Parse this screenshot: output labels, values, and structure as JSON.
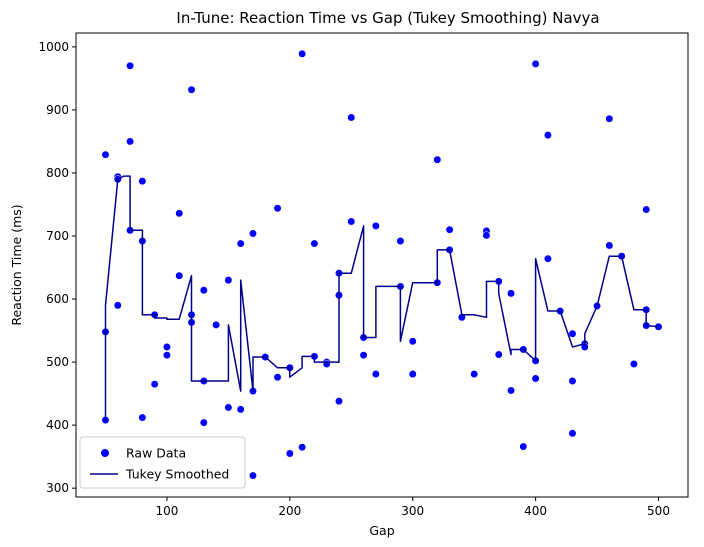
{
  "chart_data": {
    "type": "scatter",
    "title": "In-Tune: Reaction Time vs Gap (Tukey Smoothing) Navya",
    "xlabel": "Gap",
    "ylabel": "Reaction Time (ms)",
    "xlim": [
      26,
      524
    ],
    "ylim": [
      286,
      1022
    ],
    "xticks": [
      100,
      200,
      300,
      400,
      500
    ],
    "yticks": [
      300,
      400,
      500,
      600,
      700,
      800,
      900,
      1000
    ],
    "grid": false,
    "legend": {
      "position": "lower-left",
      "entries": [
        "Raw Data",
        "Tukey Smoothed"
      ]
    },
    "series": [
      {
        "name": "Raw Data",
        "kind": "scatter",
        "color": "#0000ff",
        "points": [
          [
            50,
            829
          ],
          [
            50,
            548
          ],
          [
            50,
            408
          ],
          [
            60,
            794
          ],
          [
            60,
            790
          ],
          [
            60,
            590
          ],
          [
            70,
            970
          ],
          [
            70,
            850
          ],
          [
            70,
            709
          ],
          [
            80,
            787
          ],
          [
            80,
            692
          ],
          [
            80,
            412
          ],
          [
            90,
            575
          ],
          [
            90,
            465
          ],
          [
            100,
            524
          ],
          [
            100,
            511
          ],
          [
            110,
            736
          ],
          [
            110,
            637
          ],
          [
            120,
            932
          ],
          [
            120,
            575
          ],
          [
            120,
            563
          ],
          [
            130,
            614
          ],
          [
            130,
            470
          ],
          [
            130,
            404
          ],
          [
            140,
            559
          ],
          [
            150,
            630
          ],
          [
            150,
            428
          ],
          [
            160,
            688
          ],
          [
            160,
            425
          ],
          [
            170,
            704
          ],
          [
            170,
            454
          ],
          [
            170,
            320
          ],
          [
            180,
            508
          ],
          [
            190,
            744
          ],
          [
            190,
            476
          ],
          [
            200,
            491
          ],
          [
            200,
            355
          ],
          [
            210,
            989
          ],
          [
            210,
            365
          ],
          [
            220,
            688
          ],
          [
            220,
            509
          ],
          [
            230,
            500
          ],
          [
            230,
            497
          ],
          [
            240,
            641
          ],
          [
            240,
            606
          ],
          [
            240,
            438
          ],
          [
            250,
            888
          ],
          [
            250,
            723
          ],
          [
            260,
            539
          ],
          [
            260,
            511
          ],
          [
            270,
            716
          ],
          [
            270,
            481
          ],
          [
            290,
            692
          ],
          [
            290,
            620
          ],
          [
            300,
            533
          ],
          [
            300,
            481
          ],
          [
            320,
            821
          ],
          [
            320,
            626
          ],
          [
            330,
            710
          ],
          [
            330,
            678
          ],
          [
            340,
            571
          ],
          [
            350,
            481
          ],
          [
            360,
            708
          ],
          [
            360,
            701
          ],
          [
            370,
            628
          ],
          [
            370,
            512
          ],
          [
            380,
            609
          ],
          [
            380,
            455
          ],
          [
            390,
            520
          ],
          [
            390,
            366
          ],
          [
            400,
            973
          ],
          [
            400,
            502
          ],
          [
            400,
            474
          ],
          [
            410,
            860
          ],
          [
            410,
            664
          ],
          [
            420,
            581
          ],
          [
            430,
            545
          ],
          [
            430,
            470
          ],
          [
            430,
            387
          ],
          [
            440,
            529
          ],
          [
            440,
            524
          ],
          [
            450,
            589
          ],
          [
            460,
            886
          ],
          [
            460,
            685
          ],
          [
            470,
            668
          ],
          [
            480,
            497
          ],
          [
            490,
            742
          ],
          [
            490,
            583
          ],
          [
            490,
            558
          ],
          [
            500,
            556
          ]
        ]
      },
      {
        "name": "Tukey Smoothed",
        "kind": "line",
        "color": "#00008b",
        "points": [
          [
            50,
            408
          ],
          [
            50,
            590
          ],
          [
            60,
            790
          ],
          [
            65,
            795
          ],
          [
            70,
            795
          ],
          [
            70,
            709
          ],
          [
            80,
            709
          ],
          [
            80,
            575
          ],
          [
            90,
            575
          ],
          [
            90,
            570
          ],
          [
            100,
            570
          ],
          [
            100,
            568
          ],
          [
            110,
            568
          ],
          [
            120,
            637
          ],
          [
            120,
            470
          ],
          [
            130,
            470
          ],
          [
            130,
            470
          ],
          [
            150,
            470
          ],
          [
            150,
            559
          ],
          [
            160,
            454
          ],
          [
            160,
            630
          ],
          [
            170,
            454
          ],
          [
            170,
            508
          ],
          [
            180,
            508
          ],
          [
            190,
            491
          ],
          [
            200,
            491
          ],
          [
            200,
            476
          ],
          [
            210,
            491
          ],
          [
            210,
            509
          ],
          [
            220,
            509
          ],
          [
            220,
            500
          ],
          [
            240,
            500
          ],
          [
            240,
            641
          ],
          [
            250,
            641
          ],
          [
            260,
            716
          ],
          [
            260,
            539
          ],
          [
            270,
            539
          ],
          [
            270,
            620
          ],
          [
            290,
            620
          ],
          [
            290,
            533
          ],
          [
            300,
            626
          ],
          [
            320,
            626
          ],
          [
            320,
            678
          ],
          [
            330,
            678
          ],
          [
            340,
            575
          ],
          [
            350,
            575
          ],
          [
            360,
            571
          ],
          [
            360,
            628
          ],
          [
            370,
            628
          ],
          [
            370,
            609
          ],
          [
            380,
            512
          ],
          [
            380,
            520
          ],
          [
            390,
            520
          ],
          [
            400,
            502
          ],
          [
            400,
            664
          ],
          [
            410,
            581
          ],
          [
            420,
            581
          ],
          [
            430,
            524
          ],
          [
            440,
            529
          ],
          [
            440,
            545
          ],
          [
            450,
            589
          ],
          [
            460,
            668
          ],
          [
            470,
            668
          ],
          [
            480,
            583
          ],
          [
            490,
            583
          ],
          [
            490,
            558
          ],
          [
            500,
            556
          ]
        ]
      }
    ]
  }
}
